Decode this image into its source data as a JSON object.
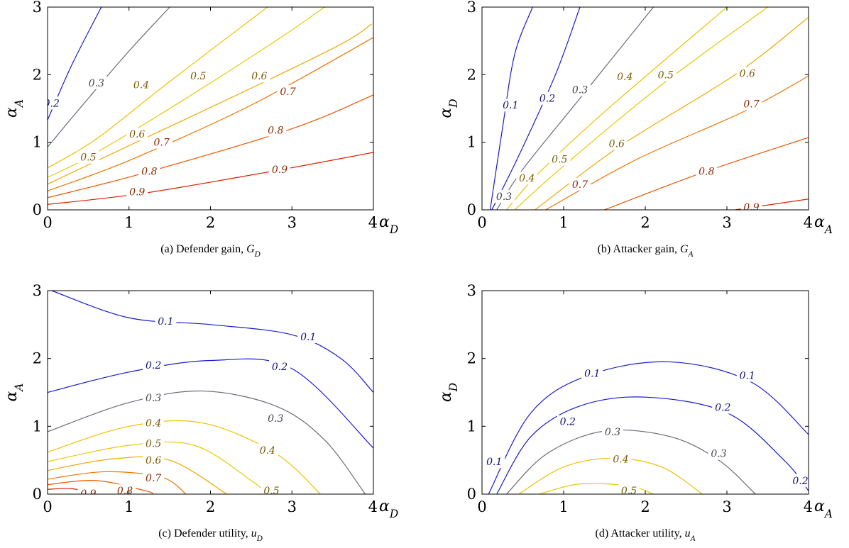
{
  "chart_data": [
    {
      "type": "contour",
      "caption": "(a)  Defender gain, G_D",
      "xlabel": "α_D",
      "ylabel": "α_A",
      "xlim": [
        0,
        4
      ],
      "ylim": [
        0,
        3
      ],
      "xticks": [
        "0",
        "1",
        "2",
        "3",
        "4"
      ],
      "yticks": [
        "0",
        "1",
        "2",
        "3"
      ],
      "levels": [
        {
          "level": "0.2",
          "color": "#1a1ad0",
          "points": [
            [
              0,
              1.33
            ],
            [
              0.3,
              2.15
            ],
            [
              0.66,
              3
            ]
          ],
          "labels": [
            [
              0.05,
              1.58
            ]
          ]
        },
        {
          "level": "0.3",
          "color": "#6a6a7a",
          "points": [
            [
              0,
              0.93
            ],
            [
              0.5,
              1.65
            ],
            [
              1.0,
              2.35
            ],
            [
              1.5,
              3
            ]
          ],
          "labels": [
            [
              0.6,
              1.88
            ]
          ]
        },
        {
          "level": "0.4",
          "color": "#f0c000",
          "points": [
            [
              0,
              0.62
            ],
            [
              0.6,
              1.05
            ],
            [
              1.5,
              1.9
            ],
            [
              2.7,
              3
            ]
          ],
          "labels": [
            [
              1.15,
              1.85
            ]
          ]
        },
        {
          "level": "0.5",
          "color": "#e8c800",
          "points": [
            [
              0,
              0.48
            ],
            [
              0.5,
              0.78
            ],
            [
              1.5,
              1.5
            ],
            [
              2.8,
              2.5
            ],
            [
              3.4,
              3
            ]
          ],
          "labels": [
            [
              0.5,
              0.78
            ],
            [
              1.85,
              1.98
            ]
          ]
        },
        {
          "level": "0.6",
          "color": "#f0a800",
          "points": [
            [
              0,
              0.38
            ],
            [
              1.0,
              0.95
            ],
            [
              2.5,
              1.8
            ],
            [
              3.6,
              2.45
            ],
            [
              3.98,
              2.75
            ]
          ],
          "labels": [
            [
              1.1,
              1.12
            ],
            [
              2.6,
              1.98
            ]
          ]
        },
        {
          "level": "0.7",
          "color": "#ee7400",
          "points": [
            [
              0,
              0.28
            ],
            [
              1.0,
              0.73
            ],
            [
              2.5,
              1.55
            ],
            [
              4,
              2.55
            ]
          ],
          "labels": [
            [
              1.4,
              1.0
            ],
            [
              2.95,
              1.75
            ]
          ]
        },
        {
          "level": "0.8",
          "color": "#ec5400",
          "points": [
            [
              0,
              0.18
            ],
            [
              1.2,
              0.55
            ],
            [
              3,
              1.2
            ],
            [
              4,
              1.7
            ]
          ],
          "labels": [
            [
              1.25,
              0.57
            ],
            [
              2.8,
              1.18
            ]
          ]
        },
        {
          "level": "0.9",
          "color": "#e02000",
          "points": [
            [
              0,
              0.08
            ],
            [
              1.2,
              0.25
            ],
            [
              2.8,
              0.58
            ],
            [
              4,
              0.85
            ]
          ],
          "labels": [
            [
              1.1,
              0.27
            ],
            [
              2.85,
              0.6
            ]
          ]
        }
      ]
    },
    {
      "type": "contour",
      "caption": "(b)  Attacker gain, G_A",
      "xlabel": "α_A",
      "ylabel": "α_D",
      "xlim": [
        0,
        4
      ],
      "ylim": [
        0,
        3
      ],
      "xticks": [
        "0",
        "1",
        "2",
        "3",
        "4"
      ],
      "yticks": [
        "0",
        "1",
        "2",
        "3"
      ],
      "levels": [
        {
          "level": "0.1",
          "color": "#1a1ad0",
          "points": [
            [
              0.1,
              0
            ],
            [
              0.25,
              1.2
            ],
            [
              0.4,
              2.3
            ],
            [
              0.62,
              3
            ]
          ],
          "labels": [
            [
              0.35,
              1.55
            ]
          ]
        },
        {
          "level": "0.2",
          "color": "#1a1ad0",
          "points": [
            [
              0.12,
              0
            ],
            [
              0.45,
              0.8
            ],
            [
              0.9,
              2.0
            ],
            [
              1.2,
              3
            ]
          ],
          "labels": [
            [
              0.8,
              1.65
            ]
          ]
        },
        {
          "level": "0.3",
          "color": "#6a6a7a",
          "points": [
            [
              0.18,
              0
            ],
            [
              0.5,
              0.6
            ],
            [
              1.2,
              1.65
            ],
            [
              2.1,
              3
            ]
          ],
          "labels": [
            [
              0.27,
              0.2
            ],
            [
              1.2,
              1.78
            ]
          ]
        },
        {
          "level": "0.4",
          "color": "#f0c000",
          "points": [
            [
              0.3,
              0
            ],
            [
              0.7,
              0.55
            ],
            [
              1.5,
              1.45
            ],
            [
              3.0,
              3
            ]
          ],
          "labels": [
            [
              0.55,
              0.47
            ],
            [
              1.75,
              1.97
            ]
          ]
        },
        {
          "level": "0.5",
          "color": "#e8c800",
          "points": [
            [
              0.4,
              0
            ],
            [
              1.0,
              0.65
            ],
            [
              2.2,
              1.85
            ],
            [
              3.5,
              3
            ]
          ],
          "labels": [
            [
              0.95,
              0.75
            ],
            [
              2.25,
              2.0
            ]
          ]
        },
        {
          "level": "0.6",
          "color": "#f0a800",
          "points": [
            [
              0.65,
              0
            ],
            [
              1.7,
              0.95
            ],
            [
              3.1,
              2.0
            ],
            [
              4,
              2.85
            ]
          ],
          "labels": [
            [
              1.65,
              0.98
            ],
            [
              3.25,
              2.02
            ]
          ]
        },
        {
          "level": "0.7",
          "color": "#ee7400",
          "points": [
            [
              0.78,
              0
            ],
            [
              1.9,
              0.75
            ],
            [
              3.2,
              1.45
            ],
            [
              4,
              1.98
            ]
          ],
          "labels": [
            [
              1.2,
              0.38
            ],
            [
              3.3,
              1.57
            ]
          ]
        },
        {
          "level": "0.8",
          "color": "#ec5400",
          "points": [
            [
              1.5,
              0
            ],
            [
              2.7,
              0.55
            ],
            [
              4,
              1.07
            ]
          ],
          "labels": [
            [
              2.75,
              0.57
            ]
          ]
        },
        {
          "level": "0.9",
          "color": "#e02000",
          "points": [
            [
              3.1,
              0
            ],
            [
              4,
              0.16
            ]
          ],
          "labels": [
            [
              3.3,
              0.04
            ]
          ]
        }
      ]
    },
    {
      "type": "contour",
      "caption": "(c)  Defender utility, u_D",
      "xlabel": "α_D",
      "ylabel": "α_A",
      "xlim": [
        0,
        4
      ],
      "ylim": [
        0,
        3
      ],
      "xticks": [
        "0",
        "1",
        "2",
        "3",
        "4"
      ],
      "yticks": [
        "0",
        "1",
        "2",
        "3"
      ],
      "levels": [
        {
          "level": "0.1",
          "color": "#1a1ad0",
          "points": [
            [
              0.05,
              3
            ],
            [
              1,
              2.6
            ],
            [
              2,
              2.5
            ],
            [
              3,
              2.35
            ],
            [
              3.6,
              2.0
            ],
            [
              4,
              1.5
            ]
          ],
          "labels": [
            [
              1.45,
              2.55
            ],
            [
              3.2,
              2.32
            ]
          ]
        },
        {
          "level": "0.2",
          "color": "#1a1ad0",
          "points": [
            [
              0,
              1.5
            ],
            [
              1,
              1.8
            ],
            [
              2,
              1.97
            ],
            [
              3,
              1.85
            ],
            [
              4,
              0.68
            ]
          ],
          "labels": [
            [
              1.3,
              1.9
            ],
            [
              2.85,
              1.88
            ]
          ]
        },
        {
          "level": "0.3",
          "color": "#6a6a7a",
          "points": [
            [
              0,
              0.92
            ],
            [
              1,
              1.35
            ],
            [
              1.9,
              1.52
            ],
            [
              2.8,
              1.3
            ],
            [
              3.4,
              0.8
            ],
            [
              3.9,
              0
            ]
          ],
          "labels": [
            [
              1.3,
              1.42
            ],
            [
              2.8,
              1.12
            ]
          ]
        },
        {
          "level": "0.4",
          "color": "#f0c000",
          "points": [
            [
              0,
              0.62
            ],
            [
              1,
              1.0
            ],
            [
              1.9,
              1.05
            ],
            [
              2.8,
              0.6
            ],
            [
              3.35,
              0
            ]
          ],
          "labels": [
            [
              1.3,
              1.05
            ],
            [
              2.7,
              0.65
            ]
          ]
        },
        {
          "level": "0.5",
          "color": "#e8c800",
          "points": [
            [
              0,
              0.48
            ],
            [
              1,
              0.72
            ],
            [
              1.8,
              0.72
            ],
            [
              2.5,
              0.2
            ],
            [
              2.7,
              0
            ]
          ],
          "labels": [
            [
              1.3,
              0.75
            ],
            [
              2.75,
              0.05
            ]
          ]
        },
        {
          "level": "0.6",
          "color": "#f0a800",
          "points": [
            [
              0,
              0.35
            ],
            [
              0.8,
              0.52
            ],
            [
              1.5,
              0.5
            ],
            [
              2.2,
              0
            ]
          ],
          "labels": [
            [
              1.3,
              0.5
            ]
          ]
        },
        {
          "level": "0.7",
          "color": "#ee7400",
          "points": [
            [
              0,
              0.22
            ],
            [
              0.7,
              0.33
            ],
            [
              1.4,
              0.25
            ],
            [
              1.7,
              0
            ]
          ],
          "labels": [
            [
              1.3,
              0.24
            ]
          ]
        },
        {
          "level": "0.8",
          "color": "#ec5400",
          "points": [
            [
              0,
              0.14
            ],
            [
              0.6,
              0.2
            ],
            [
              1.2,
              0.05
            ],
            [
              1.3,
              0
            ]
          ],
          "labels": [
            [
              0.95,
              0.05
            ]
          ]
        },
        {
          "level": "0.9",
          "color": "#e02000",
          "points": [
            [
              0,
              0.07
            ],
            [
              0.3,
              0.08
            ],
            [
              0.6,
              0
            ]
          ],
          "labels": [
            [
              0.5,
              0.01
            ]
          ]
        }
      ]
    },
    {
      "type": "contour",
      "caption": "(d)  Attacker utility, u_A",
      "xlabel": "α_A",
      "ylabel": "α_D",
      "xlim": [
        0,
        4
      ],
      "ylim": [
        0,
        3
      ],
      "xticks": [
        "0",
        "1",
        "2",
        "3",
        "4"
      ],
      "yticks": [
        "0",
        "1",
        "2",
        "3"
      ],
      "levels": [
        {
          "level": "0.1",
          "color": "#1a1ad0",
          "points": [
            [
              0.08,
              0
            ],
            [
              0.6,
              1.2
            ],
            [
              1.3,
              1.75
            ],
            [
              2.3,
              1.95
            ],
            [
              3.3,
              1.65
            ],
            [
              4,
              0.88
            ]
          ],
          "labels": [
            [
              0.15,
              0.48
            ],
            [
              1.35,
              1.78
            ],
            [
              3.25,
              1.75
            ]
          ]
        },
        {
          "level": "0.2",
          "color": "#1a1ad0",
          "points": [
            [
              0.18,
              0
            ],
            [
              0.6,
              0.85
            ],
            [
              1.2,
              1.3
            ],
            [
              2,
              1.43
            ],
            [
              3,
              1.2
            ],
            [
              3.7,
              0.5
            ],
            [
              4,
              0.05
            ]
          ],
          "labels": [
            [
              1.05,
              1.07
            ],
            [
              2.95,
              1.28
            ],
            [
              3.9,
              0.2
            ]
          ]
        },
        {
          "level": "0.3",
          "color": "#6a6a7a",
          "points": [
            [
              0.3,
              0
            ],
            [
              0.8,
              0.6
            ],
            [
              1.5,
              0.93
            ],
            [
              2.3,
              0.85
            ],
            [
              2.9,
              0.5
            ],
            [
              3.35,
              0
            ]
          ],
          "labels": [
            [
              1.6,
              0.92
            ],
            [
              2.9,
              0.6
            ]
          ]
        },
        {
          "level": "0.4",
          "color": "#f0c000",
          "points": [
            [
              0.45,
              0
            ],
            [
              1,
              0.4
            ],
            [
              1.6,
              0.53
            ],
            [
              2.2,
              0.4
            ],
            [
              2.7,
              0
            ]
          ],
          "labels": [
            [
              1.7,
              0.52
            ]
          ]
        },
        {
          "level": "0.5",
          "color": "#e8c800",
          "points": [
            [
              0.7,
              0
            ],
            [
              1.2,
              0.15
            ],
            [
              1.8,
              0.12
            ],
            [
              2.1,
              0
            ]
          ],
          "labels": [
            [
              1.8,
              0.05
            ]
          ]
        }
      ]
    }
  ]
}
